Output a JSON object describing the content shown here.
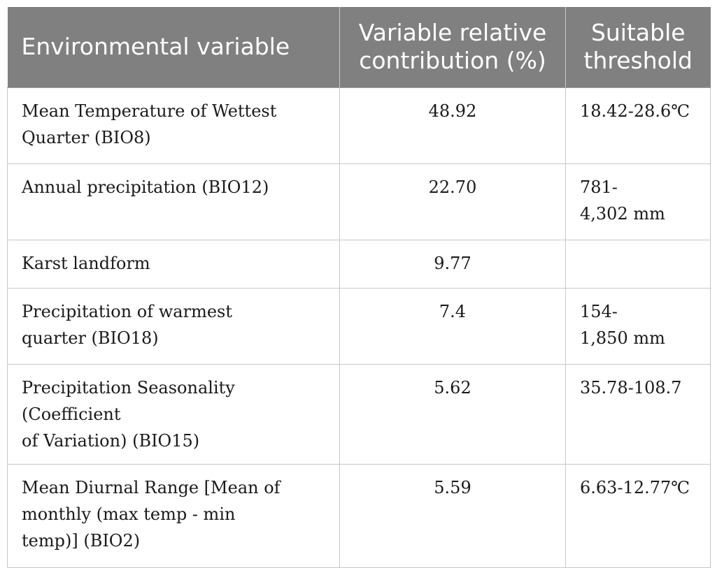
{
  "table": {
    "headers": {
      "variable": "Environmental variable",
      "contribution_line1": "Variable relative",
      "contribution_line2": "contribution (%)",
      "threshold_line1": "Suitable",
      "threshold_line2": "threshold"
    },
    "rows": [
      {
        "variable_line1": "Mean Temperature of Wettest",
        "variable_line2": "Quarter (BIO8)",
        "variable_line3": "",
        "contribution": "48.92",
        "threshold_line1": "18.42-28.6℃",
        "threshold_line2": ""
      },
      {
        "variable_line1": "Annual precipitation (BIO12)",
        "variable_line2": "",
        "variable_line3": "",
        "contribution": "22.70",
        "threshold_line1": "781-",
        "threshold_line2": "4,302 mm"
      },
      {
        "variable_line1": "Karst landform",
        "variable_line2": "",
        "variable_line3": "",
        "contribution": "9.77",
        "threshold_line1": "",
        "threshold_line2": ""
      },
      {
        "variable_line1": "Precipitation of warmest",
        "variable_line2": "quarter (BIO18)",
        "variable_line3": "",
        "contribution": "7.4",
        "threshold_line1": "154-",
        "threshold_line2": "1,850 mm"
      },
      {
        "variable_line1": "Precipitation Seasonality (Coefficient",
        "variable_line2": "of Variation) (BIO15)",
        "variable_line3": "",
        "contribution": "5.62",
        "threshold_line1": "35.78-108.7",
        "threshold_line2": ""
      },
      {
        "variable_line1": "Mean Diurnal Range [Mean of",
        "variable_line2": "monthly (max temp - min",
        "variable_line3": "temp)] (BIO2)",
        "contribution": "5.59",
        "threshold_line1": "6.63-12.77℃",
        "threshold_line2": ""
      }
    ]
  },
  "colors": {
    "header_background": "#808080",
    "header_text": "#ffffff",
    "grid_line": "#c8c8c8"
  }
}
